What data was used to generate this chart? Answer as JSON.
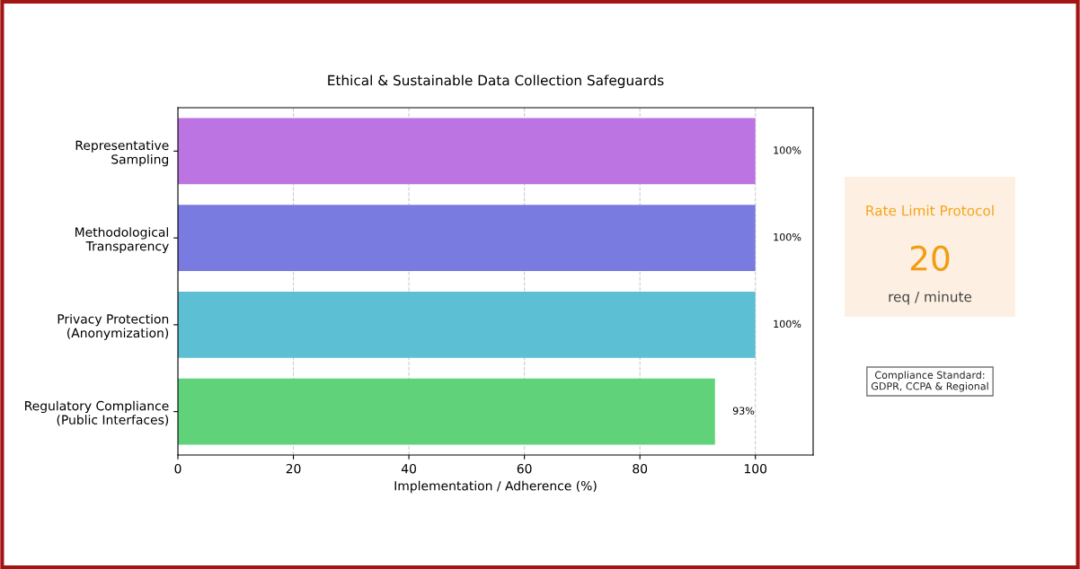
{
  "chart_data": [
    {
      "type": "bar",
      "orientation": "horizontal",
      "title": "Ethical & Sustainable Data Collection Safeguards",
      "categories": [
        "Representative\nSampling",
        "Methodological\nTransparency",
        "Privacy Protection\n(Anonymization)",
        "Regulatory Compliance\n(Public Interfaces)"
      ],
      "values": [
        100,
        100,
        100,
        93
      ],
      "colors": [
        "#bd74e3",
        "#797be0",
        "#5cbfd4",
        "#5fd27a"
      ],
      "value_labels": [
        "100%",
        "100%",
        "100%",
        "93%"
      ],
      "xlabel": "Implementation / Adherence (%)",
      "xlim": [
        0,
        110
      ],
      "xticks": [
        0,
        20,
        40,
        60,
        80,
        100
      ],
      "grid": "x",
      "line_style": "dashed",
      "legend": false
    },
    {
      "type": "other",
      "title": "Rate Limit Protocol",
      "annotations": [
        "20",
        "req / minute",
        "Compliance Standard:\nGDPR, CCPA & Regional"
      ]
    }
  ]
}
